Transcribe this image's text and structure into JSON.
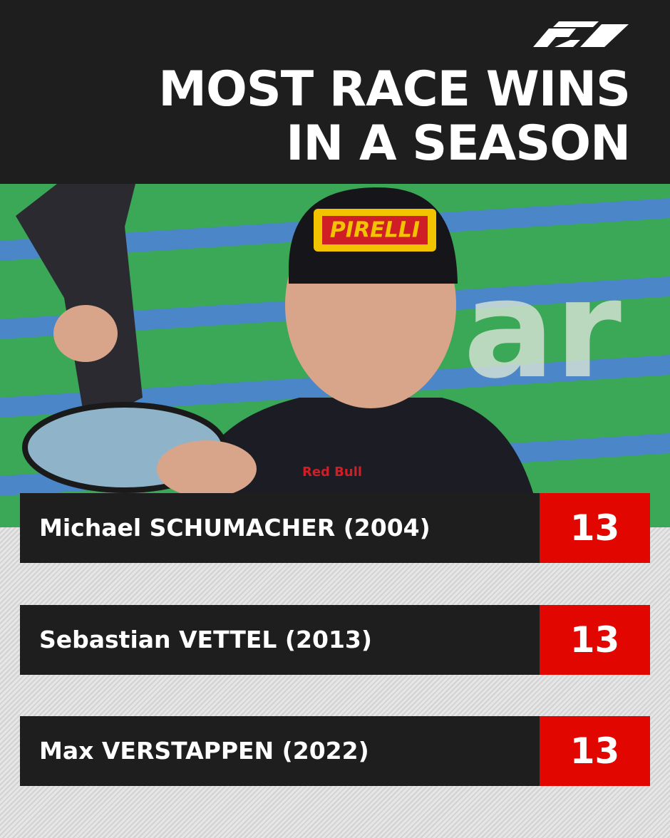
{
  "header": {
    "title_lines": [
      "MOST RACE WINS",
      "IN A SEASON"
    ]
  },
  "photo": {
    "cap_text": "PIRELLI",
    "suit_text": "Red Bull"
  },
  "table": {
    "rows": [
      {
        "driver": "Michael SCHUMACHER (2004)",
        "wins": 13
      },
      {
        "driver": "Sebastian VETTEL (2013)",
        "wins": 13
      },
      {
        "driver": "Max VERSTAPPEN (2022)",
        "wins": 13
      }
    ]
  }
}
